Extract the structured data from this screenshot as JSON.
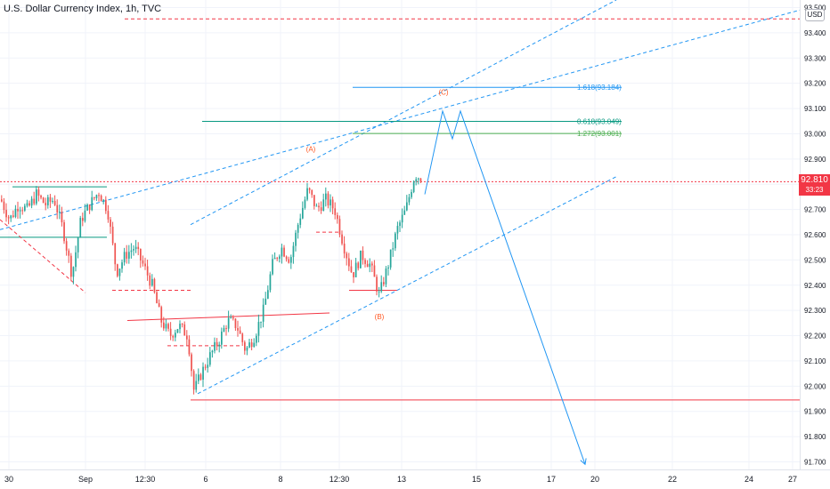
{
  "header": {
    "symbol_name": "U.S. Dollar Currency Index",
    "interval": "1h",
    "exchange": "TVC",
    "separator": ", "
  },
  "currency_badge": "USD",
  "last_price": {
    "value": "92.810",
    "countdown": "33:23"
  },
  "colors": {
    "up": "#26a69a",
    "down": "#ef5350",
    "red_line": "#f23645",
    "blue": "#2196f3",
    "fib_green": "#089981",
    "fib_light_green": "#4caf50",
    "wave_label": "#ff5722",
    "axis_text": "#131722",
    "grid": "#f0f3fa"
  },
  "chart_data": {
    "type": "candlestick",
    "y_axis": {
      "ticks": [
        93.5,
        93.4,
        93.3,
        93.2,
        93.1,
        93.0,
        92.9,
        92.8,
        92.7,
        92.6,
        92.5,
        92.4,
        92.3,
        92.2,
        92.1,
        92.0,
        91.9,
        91.8,
        91.7
      ],
      "tick_labels": [
        "93.500",
        "93.400",
        "93.300",
        "93.200",
        "93.100",
        "93.000",
        "92.900",
        "92.800",
        "92.700",
        "92.600",
        "92.500",
        "92.400",
        "92.300",
        "92.200",
        "92.100",
        "92.000",
        "91.900",
        "91.800",
        "91.700"
      ],
      "range": [
        91.67,
        93.53
      ]
    },
    "x_axis": {
      "range": [
        0,
        898
      ],
      "ticks": [
        {
          "x": 10,
          "label": "30"
        },
        {
          "x": 96,
          "label": "Sep"
        },
        {
          "x": 163,
          "label": "12:30"
        },
        {
          "x": 231,
          "label": "6"
        },
        {
          "x": 315,
          "label": "8"
        },
        {
          "x": 381,
          "label": "12:30"
        },
        {
          "x": 451,
          "label": "13"
        },
        {
          "x": 535,
          "label": "15"
        },
        {
          "x": 619,
          "label": "17"
        },
        {
          "x": 668,
          "label": "20"
        },
        {
          "x": 755,
          "label": "22"
        },
        {
          "x": 841,
          "label": "24"
        },
        {
          "x": 890,
          "label": "27"
        }
      ]
    },
    "price_path": [
      {
        "x": 0,
        "y": 92.74
      },
      {
        "x": 10,
        "y": 92.66
      },
      {
        "x": 20,
        "y": 92.72
      },
      {
        "x": 30,
        "y": 92.7
      },
      {
        "x": 40,
        "y": 92.76
      },
      {
        "x": 50,
        "y": 92.72
      },
      {
        "x": 60,
        "y": 92.74
      },
      {
        "x": 70,
        "y": 92.62
      },
      {
        "x": 80,
        "y": 92.44
      },
      {
        "x": 90,
        "y": 92.66
      },
      {
        "x": 100,
        "y": 92.72
      },
      {
        "x": 110,
        "y": 92.77
      },
      {
        "x": 120,
        "y": 92.7
      },
      {
        "x": 130,
        "y": 92.45
      },
      {
        "x": 140,
        "y": 92.52
      },
      {
        "x": 150,
        "y": 92.55
      },
      {
        "x": 160,
        "y": 92.48
      },
      {
        "x": 170,
        "y": 92.4
      },
      {
        "x": 180,
        "y": 92.26
      },
      {
        "x": 190,
        "y": 92.2
      },
      {
        "x": 200,
        "y": 92.24
      },
      {
        "x": 210,
        "y": 92.2
      },
      {
        "x": 217,
        "y": 91.98
      },
      {
        "x": 225,
        "y": 92.05
      },
      {
        "x": 235,
        "y": 92.12
      },
      {
        "x": 245,
        "y": 92.18
      },
      {
        "x": 255,
        "y": 92.26
      },
      {
        "x": 265,
        "y": 92.24
      },
      {
        "x": 275,
        "y": 92.14
      },
      {
        "x": 285,
        "y": 92.2
      },
      {
        "x": 295,
        "y": 92.3
      },
      {
        "x": 305,
        "y": 92.48
      },
      {
        "x": 315,
        "y": 92.55
      },
      {
        "x": 325,
        "y": 92.5
      },
      {
        "x": 335,
        "y": 92.66
      },
      {
        "x": 345,
        "y": 92.78
      },
      {
        "x": 355,
        "y": 92.7
      },
      {
        "x": 365,
        "y": 92.74
      },
      {
        "x": 375,
        "y": 92.7
      },
      {
        "x": 385,
        "y": 92.56
      },
      {
        "x": 395,
        "y": 92.44
      },
      {
        "x": 405,
        "y": 92.52
      },
      {
        "x": 415,
        "y": 92.48
      },
      {
        "x": 425,
        "y": 92.36
      },
      {
        "x": 435,
        "y": 92.48
      },
      {
        "x": 445,
        "y": 92.62
      },
      {
        "x": 455,
        "y": 92.7
      },
      {
        "x": 465,
        "y": 92.84
      },
      {
        "x": 474,
        "y": 92.82
      }
    ],
    "projection_path": [
      {
        "x": 477,
        "y": 92.76
      },
      {
        "x": 497,
        "y": 93.09
      },
      {
        "x": 508,
        "y": 92.98
      },
      {
        "x": 517,
        "y": 93.09
      },
      {
        "x": 657,
        "y": 91.69
      }
    ],
    "levels": [
      {
        "name": "red-top-dashed",
        "y": 93.455,
        "x1": 140,
        "x2": 898,
        "style": "dashed",
        "color": "red_line"
      },
      {
        "name": "red-current-dotted",
        "y": 92.81,
        "x1": 0,
        "x2": 898,
        "style": "dotted",
        "color": "red_line"
      },
      {
        "name": "red-bottom-solid",
        "y": 91.945,
        "x1": 214,
        "x2": 898,
        "style": "solid",
        "color": "red_line"
      },
      {
        "name": "support-mid-dashed",
        "y": 92.38,
        "x1": 126,
        "x2": 216,
        "style": "dashed",
        "color": "red_line"
      },
      {
        "name": "support-low-dashed",
        "y": 92.16,
        "x1": 188,
        "x2": 270,
        "style": "dashed",
        "color": "red_line"
      },
      {
        "name": "support-b-solid",
        "y": 92.38,
        "x1": 392,
        "x2": 446,
        "style": "solid",
        "color": "red_line"
      },
      {
        "name": "resistance-dashed",
        "y": 92.61,
        "x1": 355,
        "x2": 382,
        "style": "dashed",
        "color": "red_line"
      },
      {
        "name": "green-top-solid",
        "y": 92.79,
        "x1": 14,
        "x2": 120,
        "style": "solid",
        "color": "fib_green"
      },
      {
        "name": "green-bottom-solid",
        "y": 92.59,
        "x1": 0,
        "x2": 120,
        "style": "solid",
        "color": "fib_green"
      }
    ],
    "fib_levels": [
      {
        "label": "1.618(93.184)",
        "value": 93.184,
        "x1": 396,
        "x2": 698,
        "color": "blue"
      },
      {
        "label": "0.618(93.049)",
        "value": 93.049,
        "x1": 227,
        "x2": 698,
        "color": "fib_green"
      },
      {
        "label": "1.272(93.001)",
        "value": 93.001,
        "x1": 396,
        "x2": 698,
        "color": "fib_light_green"
      }
    ],
    "trend_lines": [
      {
        "name": "channel-upper-1",
        "x1": 0,
        "y1": 92.62,
        "x2": 898,
        "y2": 93.49
      },
      {
        "name": "channel-upper-2",
        "x1": 214,
        "y1": 92.64,
        "x2": 692,
        "y2": 93.53
      },
      {
        "name": "channel-lower",
        "x1": 222,
        "y1": 91.97,
        "x2": 692,
        "y2": 92.83
      },
      {
        "name": "red-trend-down",
        "x1": 0,
        "y1": 92.66,
        "x2": 96,
        "y2": 92.37
      },
      {
        "name": "red-trend-flat",
        "x1": 143,
        "y1": 92.26,
        "x2": 370,
        "y2": 92.29
      }
    ],
    "wave_labels": [
      {
        "text": "(A)",
        "x": 349,
        "y": 92.93
      },
      {
        "text": "(B)",
        "x": 426,
        "y": 92.265
      },
      {
        "text": "(C)",
        "x": 498,
        "y": 93.155
      }
    ]
  }
}
